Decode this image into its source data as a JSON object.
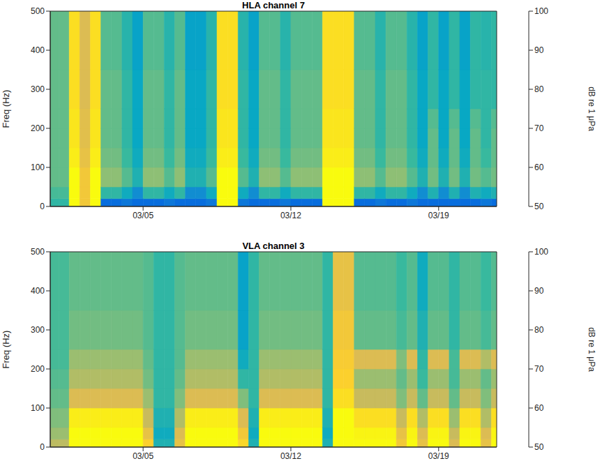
{
  "chart_data": [
    {
      "type": "heatmap",
      "title": "HLA channel 7",
      "ylabel": "Freq (Hz)",
      "xlim": [
        0.6,
        21.75
      ],
      "xticks": [
        {
          "value": 5,
          "label": "03/05"
        },
        {
          "value": 12,
          "label": "03/12"
        },
        {
          "value": 19,
          "label": "03/19"
        }
      ],
      "ylim": [
        0,
        500
      ],
      "yticks": [
        0,
        100,
        200,
        300,
        400,
        500
      ],
      "x_bins": [
        0.6,
        1,
        1.5,
        2,
        2.5,
        3,
        3.5,
        4,
        4.5,
        5,
        5.5,
        6,
        6.5,
        7,
        7.5,
        8,
        8.5,
        9,
        9.5,
        10,
        10.5,
        11,
        11.5,
        12,
        12.5,
        13,
        13.5,
        14,
        14.5,
        15,
        15.5,
        16,
        16.5,
        17,
        17.5,
        18,
        18.5,
        19,
        19.5,
        20,
        20.5,
        21,
        21.5,
        21.75
      ],
      "y_bins": [
        0,
        20,
        50,
        100,
        150,
        200,
        250,
        350,
        500
      ],
      "cells": [
        [
          74,
          76,
          78,
          78,
          78,
          78,
          78,
          78
        ],
        [
          74,
          76,
          78,
          78,
          78,
          78,
          78,
          78
        ],
        [
          100,
          100,
          100,
          98,
          97,
          97,
          96,
          96
        ],
        [
          92,
          92,
          92,
          90,
          89,
          89,
          88,
          88
        ],
        [
          100,
          100,
          100,
          98,
          97,
          97,
          96,
          96
        ],
        [
          58,
          74,
          81,
          79,
          78,
          78,
          78,
          77
        ],
        [
          58,
          74,
          81,
          79,
          78,
          78,
          78,
          77
        ],
        [
          60,
          70,
          77,
          75,
          74,
          74,
          74,
          73
        ],
        [
          58,
          64,
          72,
          70,
          69,
          69,
          69,
          68
        ],
        [
          58,
          74,
          81,
          79,
          78,
          78,
          78,
          77
        ],
        [
          58,
          74,
          81,
          79,
          78,
          78,
          78,
          77
        ],
        [
          60,
          70,
          77,
          75,
          74,
          74,
          74,
          73
        ],
        [
          58,
          74,
          81,
          79,
          78,
          78,
          78,
          77
        ],
        [
          58,
          64,
          72,
          70,
          69,
          69,
          69,
          68
        ],
        [
          58,
          64,
          72,
          70,
          69,
          69,
          69,
          68
        ],
        [
          60,
          70,
          77,
          75,
          74,
          74,
          74,
          73
        ],
        [
          100,
          100,
          100,
          98,
          97,
          97,
          96,
          96
        ],
        [
          100,
          100,
          100,
          98,
          97,
          97,
          96,
          96
        ],
        [
          60,
          70,
          77,
          75,
          74,
          74,
          74,
          73
        ],
        [
          58,
          64,
          72,
          70,
          69,
          69,
          69,
          68
        ],
        [
          58,
          74,
          81,
          79,
          78,
          78,
          78,
          77
        ],
        [
          58,
          74,
          81,
          79,
          78,
          78,
          78,
          77
        ],
        [
          60,
          70,
          77,
          75,
          74,
          74,
          74,
          73
        ],
        [
          58,
          74,
          81,
          79,
          78,
          78,
          78,
          77
        ],
        [
          58,
          74,
          81,
          79,
          78,
          78,
          78,
          77
        ],
        [
          58,
          74,
          81,
          79,
          78,
          78,
          78,
          77
        ],
        [
          100,
          100,
          100,
          98,
          97,
          97,
          96,
          96
        ],
        [
          100,
          100,
          100,
          98,
          97,
          97,
          96,
          96
        ],
        [
          100,
          100,
          100,
          98,
          97,
          97,
          96,
          96
        ],
        [
          58,
          74,
          81,
          79,
          78,
          78,
          78,
          77
        ],
        [
          58,
          74,
          81,
          79,
          78,
          78,
          78,
          77
        ],
        [
          60,
          70,
          77,
          75,
          74,
          74,
          74,
          73
        ],
        [
          58,
          74,
          81,
          79,
          78,
          78,
          78,
          77
        ],
        [
          58,
          74,
          81,
          79,
          78,
          78,
          78,
          77
        ],
        [
          60,
          70,
          77,
          75,
          74,
          74,
          74,
          73
        ],
        [
          58,
          64,
          72,
          70,
          69,
          69,
          69,
          68
        ],
        [
          58,
          72,
          79,
          78,
          78,
          77,
          74,
          74
        ],
        [
          58,
          64,
          72,
          70,
          69,
          69,
          69,
          68
        ],
        [
          58,
          72,
          79,
          78,
          78,
          77,
          74,
          74
        ],
        [
          58,
          64,
          72,
          70,
          69,
          69,
          69,
          68
        ],
        [
          58,
          72,
          79,
          78,
          78,
          77,
          74,
          74
        ],
        [
          60,
          70,
          77,
          75,
          74,
          74,
          74,
          73
        ],
        [
          58,
          72,
          79,
          78,
          78,
          77,
          74,
          74
        ]
      ],
      "colorbar_range": [
        50,
        100
      ],
      "colorbar_ticks": [
        50,
        60,
        70,
        80,
        90,
        100
      ],
      "colorbar_label": "dB re 1 μPa"
    },
    {
      "type": "heatmap",
      "title": "VLA channel 3",
      "ylabel": "Freq (Hz)",
      "xlim": [
        0.6,
        21.75
      ],
      "xticks": [
        {
          "value": 5,
          "label": "03/05"
        },
        {
          "value": 12,
          "label": "03/12"
        },
        {
          "value": 19,
          "label": "03/19"
        }
      ],
      "ylim": [
        0,
        500
      ],
      "yticks": [
        0,
        100,
        200,
        300,
        400,
        500
      ],
      "x_bins": [
        0.6,
        1,
        1.5,
        2,
        2.5,
        3,
        3.5,
        4,
        4.5,
        5,
        5.5,
        6,
        6.5,
        7,
        7.5,
        8,
        8.5,
        9,
        9.5,
        10,
        10.5,
        11,
        11.5,
        12,
        12.5,
        13,
        13.5,
        14,
        14.5,
        15,
        15.5,
        16,
        16.5,
        17,
        17.5,
        18,
        18.5,
        19,
        19.5,
        20,
        20.5,
        21,
        21.5,
        21.75
      ],
      "y_bins": [
        0,
        20,
        50,
        100,
        150,
        200,
        250,
        350,
        500
      ],
      "cells": [
        [
          85,
          82,
          80,
          78,
          77,
          76,
          76,
          76
        ],
        [
          85,
          82,
          80,
          78,
          77,
          76,
          76,
          76
        ],
        [
          100,
          100,
          98,
          88,
          84,
          82,
          79,
          78
        ],
        [
          100,
          100,
          98,
          88,
          84,
          82,
          79,
          78
        ],
        [
          100,
          100,
          98,
          88,
          84,
          82,
          79,
          78
        ],
        [
          100,
          100,
          98,
          88,
          84,
          82,
          79,
          78
        ],
        [
          100,
          100,
          98,
          88,
          84,
          82,
          79,
          78
        ],
        [
          100,
          100,
          98,
          88,
          84,
          82,
          79,
          78
        ],
        [
          100,
          100,
          98,
          88,
          84,
          82,
          79,
          78
        ],
        [
          94,
          90,
          86,
          82,
          79,
          78,
          77,
          77
        ],
        [
          72,
          70,
          72,
          74,
          74,
          74,
          74,
          74
        ],
        [
          72,
          70,
          72,
          74,
          74,
          74,
          74,
          74
        ],
        [
          90,
          88,
          84,
          80,
          78,
          77,
          77,
          77
        ],
        [
          100,
          100,
          98,
          88,
          84,
          82,
          79,
          78
        ],
        [
          100,
          100,
          98,
          88,
          84,
          82,
          79,
          78
        ],
        [
          100,
          100,
          98,
          88,
          84,
          82,
          79,
          78
        ],
        [
          100,
          100,
          98,
          88,
          84,
          82,
          79,
          78
        ],
        [
          100,
          100,
          98,
          88,
          84,
          82,
          79,
          78
        ],
        [
          95,
          92,
          88,
          80,
          74,
          70,
          68,
          68
        ],
        [
          72,
          70,
          72,
          74,
          74,
          74,
          74,
          74
        ],
        [
          100,
          100,
          98,
          88,
          84,
          82,
          79,
          78
        ],
        [
          100,
          100,
          98,
          88,
          84,
          82,
          79,
          78
        ],
        [
          100,
          100,
          98,
          88,
          84,
          82,
          79,
          78
        ],
        [
          100,
          100,
          98,
          88,
          84,
          82,
          79,
          78
        ],
        [
          100,
          100,
          98,
          88,
          84,
          82,
          79,
          78
        ],
        [
          100,
          100,
          98,
          88,
          84,
          82,
          79,
          78
        ],
        [
          72,
          70,
          72,
          74,
          74,
          74,
          74,
          74
        ],
        [
          100,
          100,
          100,
          96,
          94,
          93,
          92,
          90
        ],
        [
          100,
          100,
          100,
          96,
          94,
          93,
          92,
          90
        ],
        [
          100,
          99,
          96,
          86,
          82,
          88,
          78,
          77
        ],
        [
          100,
          99,
          96,
          86,
          82,
          88,
          78,
          77
        ],
        [
          100,
          99,
          96,
          86,
          82,
          88,
          78,
          77
        ],
        [
          100,
          99,
          96,
          86,
          82,
          88,
          78,
          77
        ],
        [
          92,
          90,
          86,
          80,
          78,
          80,
          76,
          75
        ],
        [
          100,
          99,
          96,
          86,
          82,
          88,
          78,
          77
        ],
        [
          90,
          88,
          84,
          78,
          75,
          74,
          72,
          70
        ],
        [
          100,
          99,
          96,
          86,
          82,
          88,
          78,
          77
        ],
        [
          100,
          99,
          96,
          86,
          82,
          88,
          78,
          77
        ],
        [
          88,
          86,
          82,
          78,
          76,
          76,
          74,
          74
        ],
        [
          100,
          99,
          96,
          86,
          82,
          88,
          78,
          77
        ],
        [
          100,
          99,
          96,
          86,
          82,
          88,
          78,
          77
        ],
        [
          90,
          88,
          84,
          80,
          78,
          84,
          76,
          75
        ],
        [
          100,
          99,
          96,
          86,
          82,
          88,
          78,
          77
        ]
      ],
      "colorbar_range": [
        50,
        100
      ],
      "colorbar_ticks": [
        50,
        60,
        70,
        80,
        90,
        100
      ],
      "colorbar_label": "dB re 1 μPa"
    }
  ]
}
